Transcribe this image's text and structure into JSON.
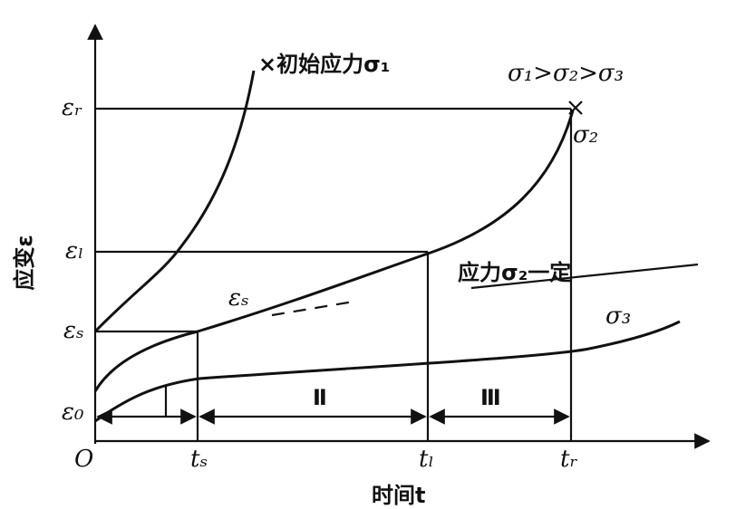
{
  "diagram": {
    "axis_y_title": "应变ε",
    "axis_x_title": "时间t",
    "y_labels": [
      "εᵣ",
      "εₗ",
      "εₛ",
      "ε₀"
    ],
    "x_labels": [
      "O",
      "tₛ",
      "tₗ",
      "tᵣ"
    ],
    "curve_labels": {
      "sigma1": "×初始应力σ₁",
      "order": "σ₁>σ₂>σ₃",
      "sigma2": "σ₂",
      "sigma2_const": "应力σ₂一定",
      "sigma3": "σ₃",
      "eps_s": "εₛ"
    },
    "regions": [
      "Ⅱ",
      "Ⅲ"
    ]
  }
}
